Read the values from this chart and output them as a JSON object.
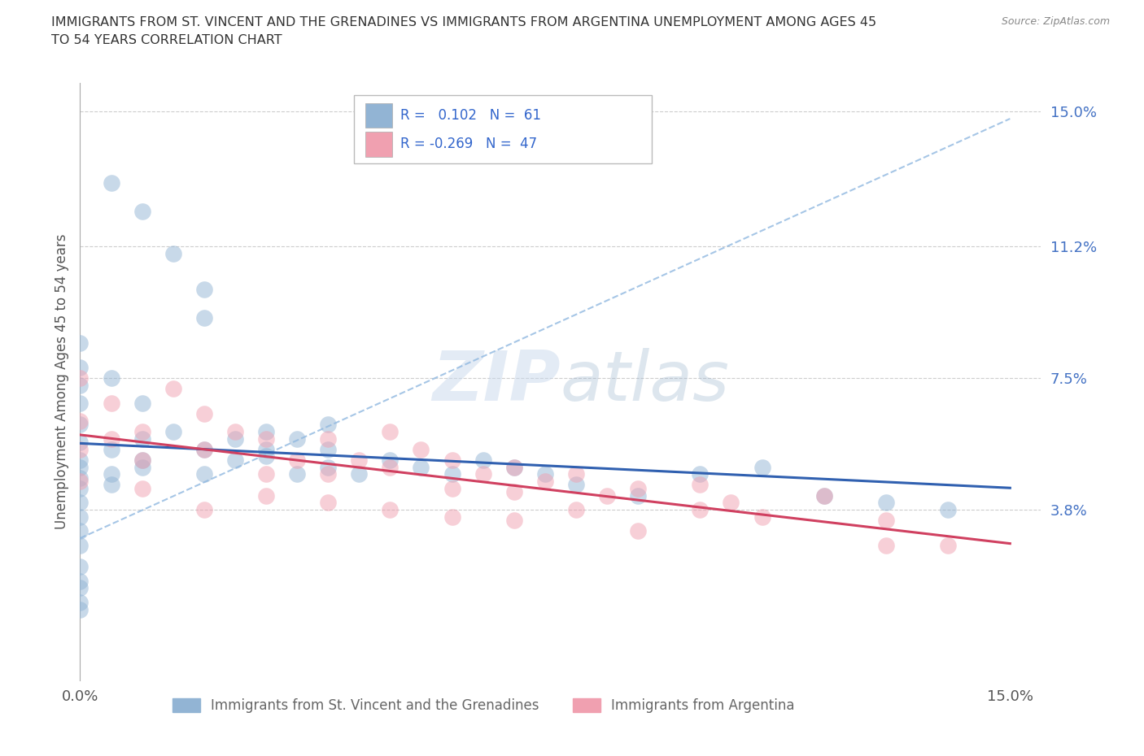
{
  "title_line1": "IMMIGRANTS FROM ST. VINCENT AND THE GRENADINES VS IMMIGRANTS FROM ARGENTINA UNEMPLOYMENT AMONG AGES 45",
  "title_line2": "TO 54 YEARS CORRELATION CHART",
  "source_text": "Source: ZipAtlas.com",
  "ylabel": "Unemployment Among Ages 45 to 54 years",
  "xlim": [
    0.0,
    0.155
  ],
  "ylim": [
    -0.01,
    0.158
  ],
  "xtick_positions": [
    0.0,
    0.15
  ],
  "xtick_labels": [
    "0.0%",
    "15.0%"
  ],
  "ytick_positions": [
    0.0,
    0.038,
    0.075,
    0.112,
    0.15
  ],
  "ytick_labels": [
    "",
    "3.8%",
    "7.5%",
    "11.2%",
    "15.0%"
  ],
  "grid_color": "#c8c8c8",
  "background_color": "#ffffff",
  "series1_label": "Immigrants from St. Vincent and the Grenadines",
  "series2_label": "Immigrants from Argentina",
  "series1_scatter_color": "#92b4d4",
  "series2_scatter_color": "#f0a0b0",
  "series1_line_color": "#3060b0",
  "series2_line_color": "#d04060",
  "series1_dash_color": "#90b8e0",
  "series1_R": 0.102,
  "series1_N": 61,
  "series2_R": -0.269,
  "series2_N": 47,
  "legend_box_color": "#bbbbbb",
  "watermark_color": "#c8d8ec",
  "watermark_alpha": 0.5,
  "scatter_size": 220,
  "scatter_alpha": 0.5,
  "ytick_color": "#4472c4",
  "xtick_color": "#555555",
  "title_color": "#333333",
  "ylabel_color": "#555555",
  "source_color": "#888888"
}
